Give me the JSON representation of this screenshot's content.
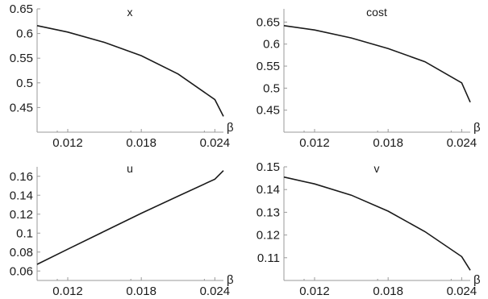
{
  "chart_data": [
    {
      "type": "line",
      "title": "x",
      "xlabel": "β",
      "xlim": [
        0.0095,
        0.0247
      ],
      "ylim": [
        0.4,
        0.65
      ],
      "x_ticks": [
        "0.012",
        "0.018",
        "0.024"
      ],
      "y_ticks": [
        "0.45",
        "0.5",
        "0.55",
        "0.6",
        "0.65"
      ],
      "series": [
        {
          "x": [
            0.0095,
            0.012,
            0.015,
            0.018,
            0.021,
            0.024,
            0.0247
          ],
          "y": [
            0.616,
            0.603,
            0.582,
            0.555,
            0.518,
            0.466,
            0.432
          ]
        }
      ]
    },
    {
      "type": "line",
      "title": "cost",
      "xlabel": "β",
      "xlim": [
        0.0095,
        0.0247
      ],
      "ylim": [
        0.4,
        0.68
      ],
      "x_ticks": [
        "0.012",
        "0.018",
        "0.024"
      ],
      "y_ticks": [
        "0.45",
        "0.5",
        "0.55",
        "0.6",
        "0.65"
      ],
      "series": [
        {
          "x": [
            0.0095,
            0.012,
            0.015,
            0.018,
            0.021,
            0.024,
            0.0247
          ],
          "y": [
            0.642,
            0.632,
            0.614,
            0.59,
            0.56,
            0.512,
            0.468
          ]
        }
      ]
    },
    {
      "type": "line",
      "title": "u",
      "xlabel": "β",
      "xlim": [
        0.0095,
        0.0247
      ],
      "ylim": [
        0.05,
        0.17
      ],
      "x_ticks": [
        "0.012",
        "0.018",
        "0.024"
      ],
      "y_ticks": [
        "0.06",
        "0.08",
        "0.1",
        "0.12",
        "0.14",
        "0.16"
      ],
      "series": [
        {
          "x": [
            0.0095,
            0.012,
            0.015,
            0.018,
            0.021,
            0.024,
            0.0247
          ],
          "y": [
            0.067,
            0.083,
            0.102,
            0.121,
            0.139,
            0.157,
            0.166
          ]
        }
      ]
    },
    {
      "type": "line",
      "title": "v",
      "xlabel": "β",
      "xlim": [
        0.0095,
        0.0247
      ],
      "ylim": [
        0.1,
        0.15
      ],
      "x_ticks": [
        "0.012",
        "0.018",
        "0.024"
      ],
      "y_ticks": [
        "0.11",
        "0.12",
        "0.13",
        "0.14",
        "0.15"
      ],
      "series": [
        {
          "x": [
            0.0095,
            0.012,
            0.015,
            0.018,
            0.021,
            0.024,
            0.0247
          ],
          "y": [
            0.1455,
            0.1425,
            0.1375,
            0.1305,
            0.1215,
            0.1105,
            0.1045
          ]
        }
      ]
    }
  ]
}
